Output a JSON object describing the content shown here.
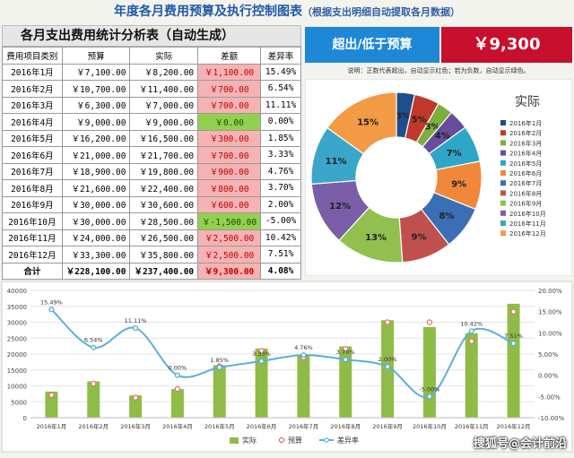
{
  "title": {
    "main": "年度各月费用预算及执行控制图表",
    "sub": "（根据支出明细自动提取各月数据）"
  },
  "table": {
    "header": "各月支出费用统计分析表（自动生成）",
    "columns": [
      "费用项目类别",
      "预算",
      "实际",
      "差额",
      "差异率"
    ],
    "rows": [
      {
        "month": "2016年1月",
        "budget": "￥7,100.00",
        "actual": "￥8,200.00",
        "diff": "￥1,100.00",
        "rate": "15.49%",
        "status": "pos"
      },
      {
        "month": "2016年2月",
        "budget": "￥10,700.00",
        "actual": "￥11,400.00",
        "diff": "￥700.00",
        "rate": "6.54%",
        "status": "pos"
      },
      {
        "month": "2016年3月",
        "budget": "￥6,300.00",
        "actual": "￥7,000.00",
        "diff": "￥700.00",
        "rate": "11.11%",
        "status": "pos"
      },
      {
        "month": "2016年4月",
        "budget": "￥9,000.00",
        "actual": "￥9,000.00",
        "diff": "￥0.00",
        "rate": "0.00%",
        "status": "zero"
      },
      {
        "month": "2016年5月",
        "budget": "￥16,200.00",
        "actual": "￥16,500.00",
        "diff": "￥300.00",
        "rate": "1.85%",
        "status": "pos"
      },
      {
        "month": "2016年6月",
        "budget": "￥21,000.00",
        "actual": "￥21,700.00",
        "diff": "￥700.00",
        "rate": "3.33%",
        "status": "pos"
      },
      {
        "month": "2016年7月",
        "budget": "￥18,900.00",
        "actual": "￥19,800.00",
        "diff": "￥900.00",
        "rate": "4.76%",
        "status": "pos"
      },
      {
        "month": "2016年8月",
        "budget": "￥21,600.00",
        "actual": "￥22,400.00",
        "diff": "￥800.00",
        "rate": "3.70%",
        "status": "pos"
      },
      {
        "month": "2016年9月",
        "budget": "￥30,000.00",
        "actual": "￥30,600.00",
        "diff": "￥600.00",
        "rate": "2.00%",
        "status": "pos"
      },
      {
        "month": "2016年10月",
        "budget": "￥30,000.00",
        "actual": "￥28,500.00",
        "diff": "￥-1,500.00",
        "rate": "-5.00%",
        "status": "zero"
      },
      {
        "month": "2016年11月",
        "budget": "￥24,000.00",
        "actual": "￥26,500.00",
        "diff": "￥2,500.00",
        "rate": "10.42%",
        "status": "pos"
      },
      {
        "month": "2016年12月",
        "budget": "￥33,300.00",
        "actual": "￥35,800.00",
        "diff": "￥2,500.00",
        "rate": "7.51%",
        "status": "pos"
      }
    ],
    "total": {
      "label": "合计",
      "budget": "￥228,100.00",
      "actual": "￥237,400.00",
      "diff": "￥9,300.00",
      "rate": "4.08%"
    }
  },
  "kpi": {
    "label": "超出/低于预算",
    "value": "￥9,300"
  },
  "note": "说明：正数代表超出，自动显示红色；若为负数，自动显示绿色。",
  "colors": {
    "bar": "#8fbc46",
    "budget_marker": "#e46c6c",
    "line": "#5bb0d8",
    "pos": "#f6b3b3",
    "zero": "#92d050",
    "kpi_blue": "#1e88d6",
    "kpi_red": "#c8102e"
  },
  "chart_data": [
    {
      "type": "pie",
      "title": "实际",
      "donut": true,
      "categories": [
        "2016年1月",
        "2016年2月",
        "2016年3月",
        "2016年4月",
        "2016年5月",
        "2016年6月",
        "2016年7月",
        "2016年8月",
        "2016年9月",
        "2016年10月",
        "2016年11月",
        "2016年12月"
      ],
      "values": [
        8200,
        11400,
        7000,
        9000,
        16500,
        21700,
        19800,
        22400,
        30600,
        28500,
        26500,
        35800
      ],
      "slice_labels": [
        "3%",
        "5%",
        "3%",
        "4%",
        "7%",
        "9%",
        "8%",
        "9%",
        "13%",
        "12%",
        "11%",
        "15%"
      ],
      "slice_colors": [
        "#1f4e8c",
        "#c0392b",
        "#7cae3c",
        "#6a4c9c",
        "#2ea6c8",
        "#f0873b",
        "#3b6fb5",
        "#c0504d",
        "#92c04f",
        "#7a5ea8",
        "#3aa6c9",
        "#f39a45"
      ],
      "legend_position": "right"
    },
    {
      "type": "bar",
      "categories": [
        "2016年1月",
        "2016年2月",
        "2016年3月",
        "2016年4月",
        "2016年5月",
        "2016年6月",
        "2016年7月",
        "2016年8月",
        "2016年9月",
        "2016年10月",
        "2016年11月",
        "2016年12月"
      ],
      "series": [
        {
          "name": "实际",
          "type": "bar",
          "values": [
            8200,
            11400,
            7000,
            9000,
            16500,
            21700,
            19800,
            22400,
            30600,
            28500,
            26500,
            35800
          ]
        },
        {
          "name": "预算",
          "type": "marker",
          "values": [
            7100,
            10700,
            6300,
            9000,
            16200,
            21000,
            18900,
            21600,
            30000,
            30000,
            24000,
            33300
          ]
        },
        {
          "name": "差异率",
          "type": "line",
          "axis": "right",
          "values": [
            15.49,
            6.54,
            11.11,
            0.0,
            1.85,
            3.33,
            4.76,
            3.7,
            2.0,
            -5.0,
            10.42,
            7.51
          ]
        }
      ],
      "data_labels": [
        "15.49%",
        "6.54%",
        "11.11%",
        "0.00%",
        "1.85%",
        "3.33%",
        "4.76%",
        "3.70%",
        "2.00%",
        "-5.00%",
        "10.42%",
        "7.51%"
      ],
      "ylim": [
        0,
        40000
      ],
      "yticks": [
        "0",
        "5000",
        "10000",
        "15000",
        "20000",
        "25000",
        "30000",
        "35000",
        "40000"
      ],
      "y2lim": [
        -10,
        20
      ],
      "y2ticks": [
        "-10.00%",
        "-5.00%",
        "0.00%",
        "5.00%",
        "10.00%",
        "15.00%",
        "20.00%"
      ],
      "grid": true,
      "legend_position": "bottom"
    }
  ],
  "watermark": "搜狐号@会计前沿"
}
